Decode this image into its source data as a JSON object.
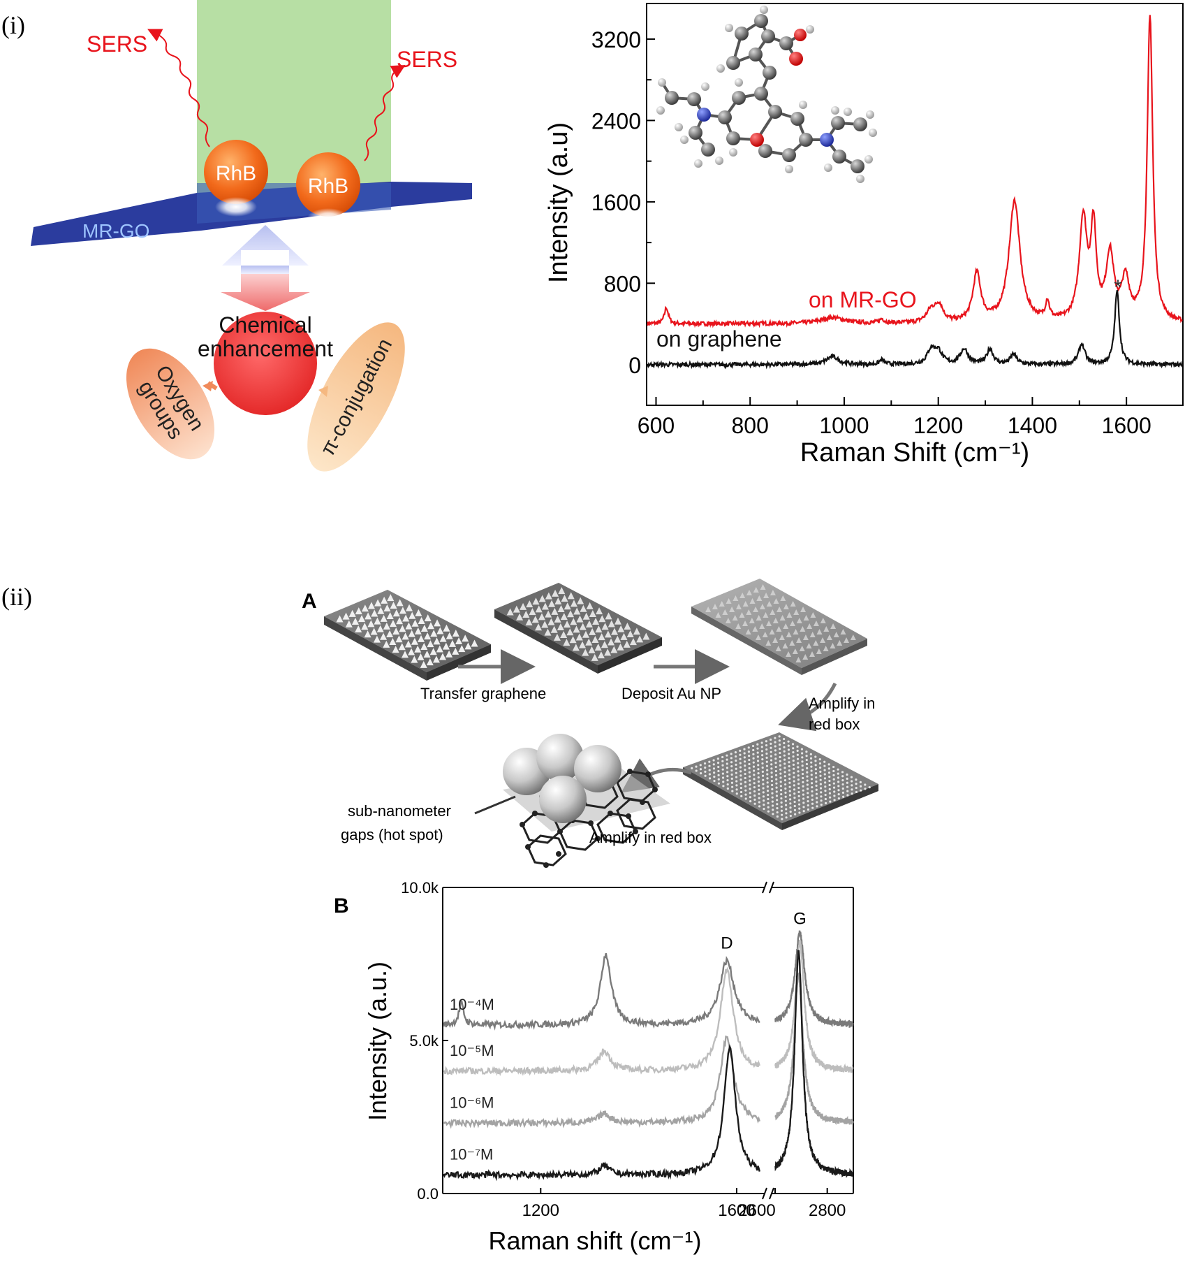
{
  "panel_i": {
    "label": "(i)",
    "schematic": {
      "sers_left": "SERS",
      "sers_right": "SERS",
      "molecule_1": "RhB",
      "molecule_2": "RhB",
      "substrate": "MR-GO",
      "center_line1": "Chemical",
      "center_line2": "enhancement",
      "left_ellipse_line1": "Oxygen",
      "left_ellipse_line2": "groups",
      "right_ellipse": "π-conjugation"
    }
  },
  "panel_ii": {
    "label": "(ii)",
    "A": {
      "label": "A",
      "step1": "Transfer graphene",
      "step2": "Deposit  Au NP",
      "step3_line1": "Amplify in",
      "step3_line2": "red box",
      "step4": "Amplify in red box",
      "hotspot_line1": "sub-nanometer",
      "hotspot_line2": "gaps  (hot spot)"
    },
    "B_label": "B"
  },
  "chart_data": [
    {
      "id": "raman-rhb",
      "type": "line",
      "xlabel": "Raman Shift (cm⁻¹)",
      "ylabel": "Intensity (a.u)",
      "xlim": [
        580,
        1720
      ],
      "ylim": [
        -400,
        3550
      ],
      "xticks": [
        600,
        800,
        1000,
        1200,
        1400,
        1600
      ],
      "yticks": [
        0,
        800,
        1600,
        2400,
        3200
      ],
      "baseline_noise": 40,
      "series": [
        {
          "name": "on MR-GO",
          "color": "#e8141c",
          "baseline": 400,
          "peaks": [
            [
              622,
              160,
              5
            ],
            [
              975,
              60,
              30
            ],
            [
              1080,
              40,
              6
            ],
            [
              1185,
              120,
              12
            ],
            [
              1202,
              160,
              10
            ],
            [
              1282,
              480,
              10
            ],
            [
              1362,
              1200,
              14
            ],
            [
              1432,
              180,
              5
            ],
            [
              1508,
              1000,
              10
            ],
            [
              1530,
              880,
              7
            ],
            [
              1565,
              650,
              10
            ],
            [
              1598,
              400,
              10
            ],
            [
              1650,
              3000,
              7
            ]
          ]
        },
        {
          "name": "on graphene",
          "color": "#111111",
          "baseline": 0,
          "peaks": [
            [
              975,
              80,
              15
            ],
            [
              1080,
              45,
              6
            ],
            [
              1185,
              140,
              10
            ],
            [
              1200,
              120,
              10
            ],
            [
              1255,
              150,
              10
            ],
            [
              1310,
              150,
              8
            ],
            [
              1360,
              100,
              8
            ],
            [
              1505,
              200,
              8
            ],
            [
              1580,
              720,
              6
            ]
          ]
        }
      ],
      "annotation": "*"
    },
    {
      "id": "raman-concentration",
      "type": "line",
      "xlabel": "Raman shift (cm⁻¹)",
      "ylabel": "Intensity (a.u.)",
      "ylim": [
        0,
        10000
      ],
      "yticks": [
        "0.0",
        "5.0k",
        "10.0k"
      ],
      "x_break": true,
      "x_segment_1": [
        1000,
        1650
      ],
      "x_segment_2": [
        2600,
        2900
      ],
      "xticks_1": [
        1200,
        1600
      ],
      "xticks_2": [
        2600,
        2800
      ],
      "peak_labels": [
        "D",
        "G"
      ],
      "baseline_noise": 200,
      "series": [
        {
          "name": "10⁻⁴M",
          "color": "#7a7a7a",
          "baseline": 5500,
          "peaks": [
            [
              1038,
              700,
              6
            ],
            [
              1333,
              2300,
              13
            ],
            [
              1580,
              2100,
              18
            ],
            [
              2695,
              3000,
              22
            ]
          ]
        },
        {
          "name": "10⁻⁵M",
          "color": "#bdbdbd",
          "baseline": 4000,
          "peaks": [
            [
              1330,
              650,
              15
            ],
            [
              1580,
              3300,
              16
            ],
            [
              2695,
              4200,
              20
            ]
          ]
        },
        {
          "name": "10⁻⁶M",
          "color": "#a3a3a3",
          "baseline": 2300,
          "peaks": [
            [
              1330,
              300,
              15
            ],
            [
              1580,
              2800,
              16
            ],
            [
              2690,
              4800,
              20
            ]
          ]
        },
        {
          "name": "10⁻⁷M",
          "color": "#1a1a1a",
          "baseline": 600,
          "peaks": [
            [
              1330,
              300,
              12
            ],
            [
              1586,
              4200,
              14
            ],
            [
              2690,
              7300,
              18
            ]
          ]
        }
      ]
    }
  ]
}
